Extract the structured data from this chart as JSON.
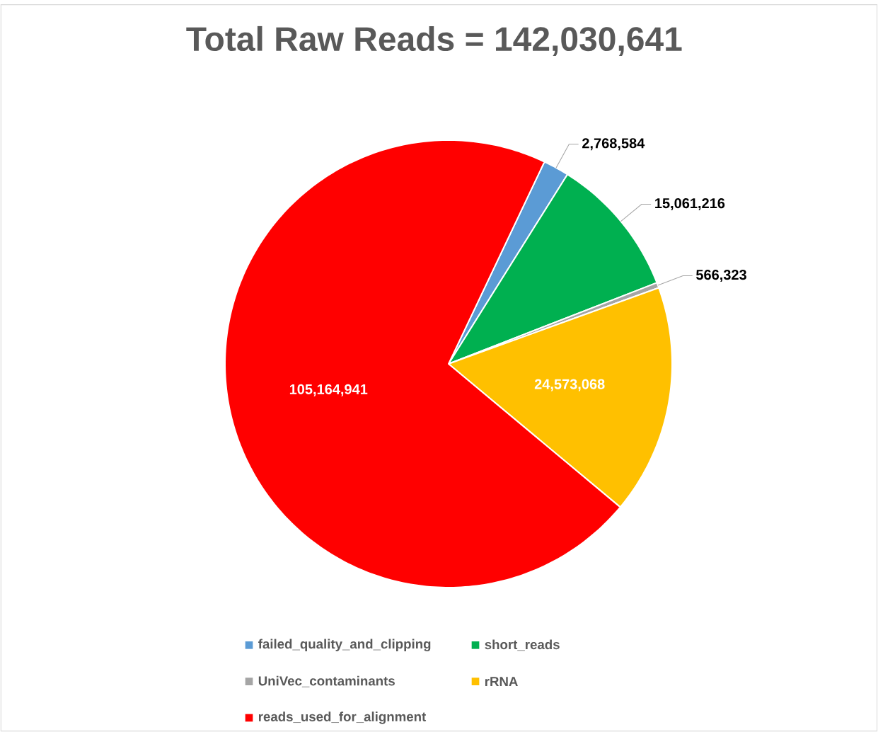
{
  "chart_data": {
    "type": "pie",
    "title": "Total Raw Reads = 142,030,641",
    "categories": [
      "failed_quality_and_clipping",
      "short_reads",
      "UniVec_contaminants",
      "rRNA",
      "reads_used_for_alignment"
    ],
    "values": [
      2768584,
      15061216,
      566323,
      24573068,
      105164941
    ],
    "value_labels": [
      "2,768,584",
      "15,061,216",
      "566,323",
      "24,573,068",
      "105,164,941"
    ],
    "colors": [
      "#5b9bd5",
      "#00b050",
      "#a5a5a5",
      "#ffc000",
      "#ff0000"
    ],
    "legend": "bottom"
  }
}
